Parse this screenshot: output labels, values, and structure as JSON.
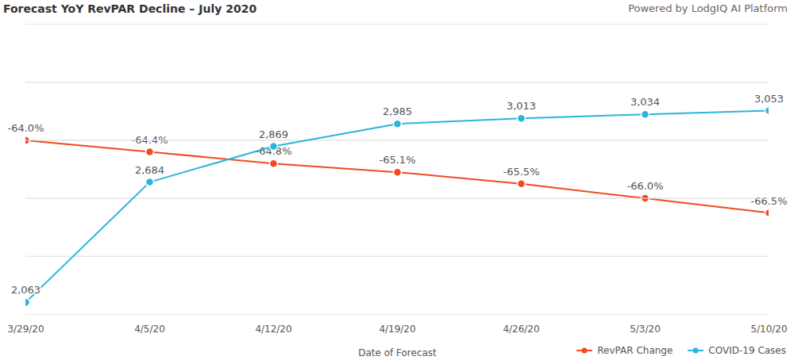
{
  "chart_data": {
    "type": "line",
    "title": "Forecast YoY RevPAR Decline – July 2020",
    "subtitle": "Powered by LodgIQ AI Platform",
    "x_label": "Date of Forecast",
    "categories": [
      "3/29/20",
      "4/5/20",
      "4/12/20",
      "4/19/20",
      "4/26/20",
      "5/3/20",
      "5/10/20"
    ],
    "series": [
      {
        "name": "RevPAR Change",
        "color": "#f04a23",
        "marker": "circle",
        "values": [
          -64.0,
          -64.4,
          -64.8,
          -65.1,
          -65.5,
          -66.0,
          -66.5
        ],
        "value_labels": [
          "-64.0%",
          "-64.4%",
          "-64.8%",
          "-65.1%",
          "-65.5%",
          "-66.0%",
          "-66.5%"
        ]
      },
      {
        "name": "COVID-19 Cases",
        "color": "#2bb5d9",
        "marker": "circle",
        "axis": "y2",
        "values": [
          2063,
          2684,
          2869,
          2985,
          3013,
          3034,
          3053
        ],
        "value_labels": [
          "2,063",
          "2,684",
          "2,869",
          "2,985",
          "3,013",
          "3,034",
          "3,053"
        ]
      }
    ],
    "ylim": [
      -70,
      -60
    ],
    "yticks": [
      -70,
      -68,
      -66,
      -64,
      -62,
      -60
    ],
    "y2lim": [
      2000,
      3500
    ],
    "y2ticks": [
      2000,
      2300,
      2600,
      2900,
      3200,
      3500
    ],
    "grid": true,
    "legend": "lower right",
    "data_labels": true,
    "tick_labels": "x"
  }
}
